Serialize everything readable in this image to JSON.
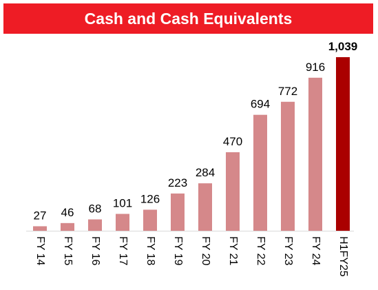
{
  "chart_data": {
    "type": "bar",
    "title": "Cash and Cash Equivalents",
    "categories": [
      "FY 14",
      "FY 15",
      "FY 16",
      "FY 17",
      "FY 18",
      "FY 19",
      "FY 20",
      "FY 21",
      "FY 22",
      "FY 23",
      "FY 24",
      "H1FY25"
    ],
    "values": [
      27,
      46,
      68,
      101,
      126,
      223,
      284,
      470,
      694,
      772,
      916,
      1039
    ],
    "value_labels": [
      "27",
      "46",
      "68",
      "101",
      "126",
      "223",
      "284",
      "470",
      "694",
      "772",
      "916",
      "1,039"
    ],
    "highlight_index": 11,
    "xlabel": "",
    "ylabel": "",
    "ylim": [
      0,
      1039
    ],
    "grid": false,
    "legend": "none",
    "colors": {
      "title_bg": "#ee1c25",
      "title_text": "#ffffff",
      "bar": "#d5888a",
      "bar_highlight": "#aa0000",
      "axis": "#d9d9d9",
      "label": "#000000"
    }
  }
}
